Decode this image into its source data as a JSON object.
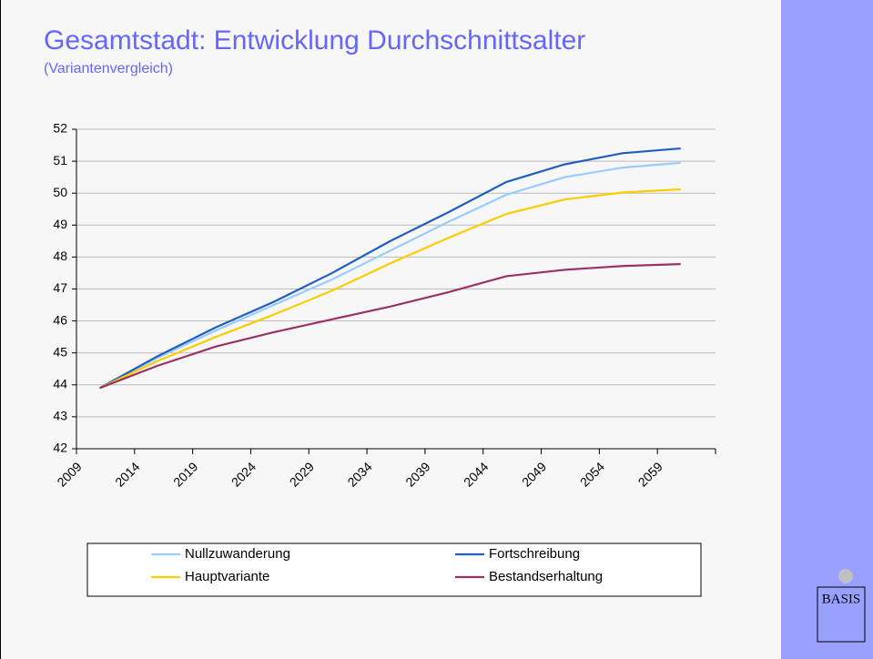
{
  "chart_data": {
    "type": "line",
    "title": "Gesamtstadt: Entwicklung Durchschnittsalter",
    "subtitle": "(Variantenvergleich)",
    "x": [
      2011,
      2016,
      2021,
      2026,
      2031,
      2036,
      2041,
      2046,
      2051,
      2056,
      2061
    ],
    "series": [
      {
        "name": "Nullzuwanderung",
        "color": "#99ccff",
        "values": [
          43.9,
          44.85,
          45.7,
          46.5,
          47.3,
          48.2,
          49.1,
          49.95,
          50.5,
          50.8,
          50.95
        ]
      },
      {
        "name": "Fortschreibung",
        "color": "#1f5fbf",
        "values": [
          43.9,
          44.9,
          45.8,
          46.6,
          47.5,
          48.5,
          49.4,
          50.35,
          50.9,
          51.25,
          51.4
        ]
      },
      {
        "name": "Hauptvariante",
        "color": "#ffcc00",
        "values": [
          43.9,
          44.75,
          45.5,
          46.2,
          46.95,
          47.8,
          48.6,
          49.35,
          49.8,
          50.02,
          50.12
        ]
      },
      {
        "name": "Bestandserhaltung",
        "color": "#993366",
        "values": [
          43.9,
          44.6,
          45.2,
          45.65,
          46.05,
          46.45,
          46.9,
          47.4,
          47.6,
          47.72,
          47.78
        ]
      }
    ],
    "xlim": [
      2009,
      2064
    ],
    "xticks": [
      2009,
      2014,
      2019,
      2024,
      2029,
      2034,
      2039,
      2044,
      2049,
      2054,
      2059
    ],
    "ylim": [
      42,
      52
    ],
    "yticks": [
      42,
      43,
      44,
      45,
      46,
      47,
      48,
      49,
      50,
      51,
      52
    ],
    "grid": true
  },
  "logo": "BASIS"
}
